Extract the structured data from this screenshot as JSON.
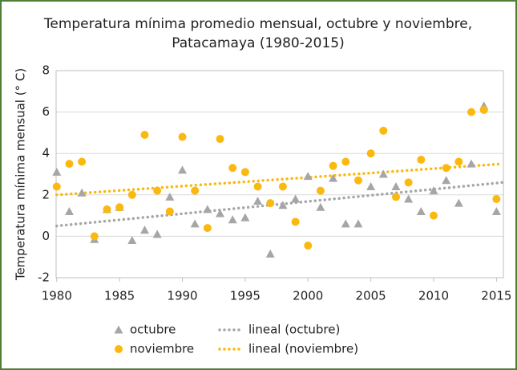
{
  "chart_data": {
    "type": "scatter",
    "title": "Temperatura mínima promedio mensual, octubre y noviembre, Patacamaya (1980-2015)",
    "y_label": "Temperatura mínima mensual (° C)",
    "x": [
      1980,
      1981,
      1982,
      1983,
      1984,
      1985,
      1986,
      1987,
      1988,
      1989,
      1990,
      1991,
      1992,
      1993,
      1994,
      1995,
      1996,
      1997,
      1998,
      1999,
      2000,
      2001,
      2002,
      2003,
      2004,
      2005,
      2006,
      2007,
      2008,
      2009,
      2010,
      2011,
      2012,
      2013,
      2014,
      2015
    ],
    "series": [
      {
        "name": "octubre",
        "color": "#a6a6a6",
        "marker": "triangle",
        "values": [
          3.1,
          1.2,
          2.1,
          -0.15,
          1.3,
          1.4,
          -0.2,
          0.3,
          0.1,
          1.9,
          3.2,
          0.6,
          1.3,
          1.1,
          0.8,
          0.9,
          1.7,
          -0.85,
          1.5,
          1.8,
          2.9,
          1.4,
          2.8,
          0.6,
          0.6,
          2.4,
          3.0,
          2.4,
          1.8,
          1.2,
          2.2,
          2.7,
          1.6,
          3.5,
          6.3,
          1.2
        ]
      },
      {
        "name": "noviembre",
        "color": "#fbb90f",
        "marker": "circle",
        "values": [
          2.4,
          3.5,
          3.6,
          0.0,
          1.3,
          1.4,
          2.0,
          4.9,
          2.2,
          1.2,
          4.8,
          2.2,
          0.4,
          4.7,
          3.3,
          3.1,
          2.4,
          1.6,
          2.4,
          0.7,
          -0.45,
          2.2,
          3.4,
          3.6,
          2.7,
          4.0,
          5.1,
          1.9,
          2.6,
          3.7,
          1.0,
          3.3,
          3.6,
          6.0,
          6.1,
          1.8
        ]
      },
      {
        "name": "lineal (octubre)",
        "color": "#a6a6a6",
        "marker": "dotted",
        "x": [
          1980,
          2015.5
        ],
        "values": [
          0.5,
          2.6
        ]
      },
      {
        "name": "lineal (noviembre)",
        "color": "#fbb90f",
        "marker": "dotted",
        "x": [
          1980,
          2015.5
        ],
        "values": [
          2.0,
          3.5
        ]
      }
    ],
    "xlim": [
      1979.95,
      2015.55
    ],
    "xticks": [
      1980,
      1985,
      1990,
      1995,
      2000,
      2005,
      2010,
      2015
    ],
    "ylim": [
      -2,
      8
    ],
    "yticks": [
      -2,
      0,
      2,
      4,
      6,
      8
    ],
    "grid": true
  }
}
